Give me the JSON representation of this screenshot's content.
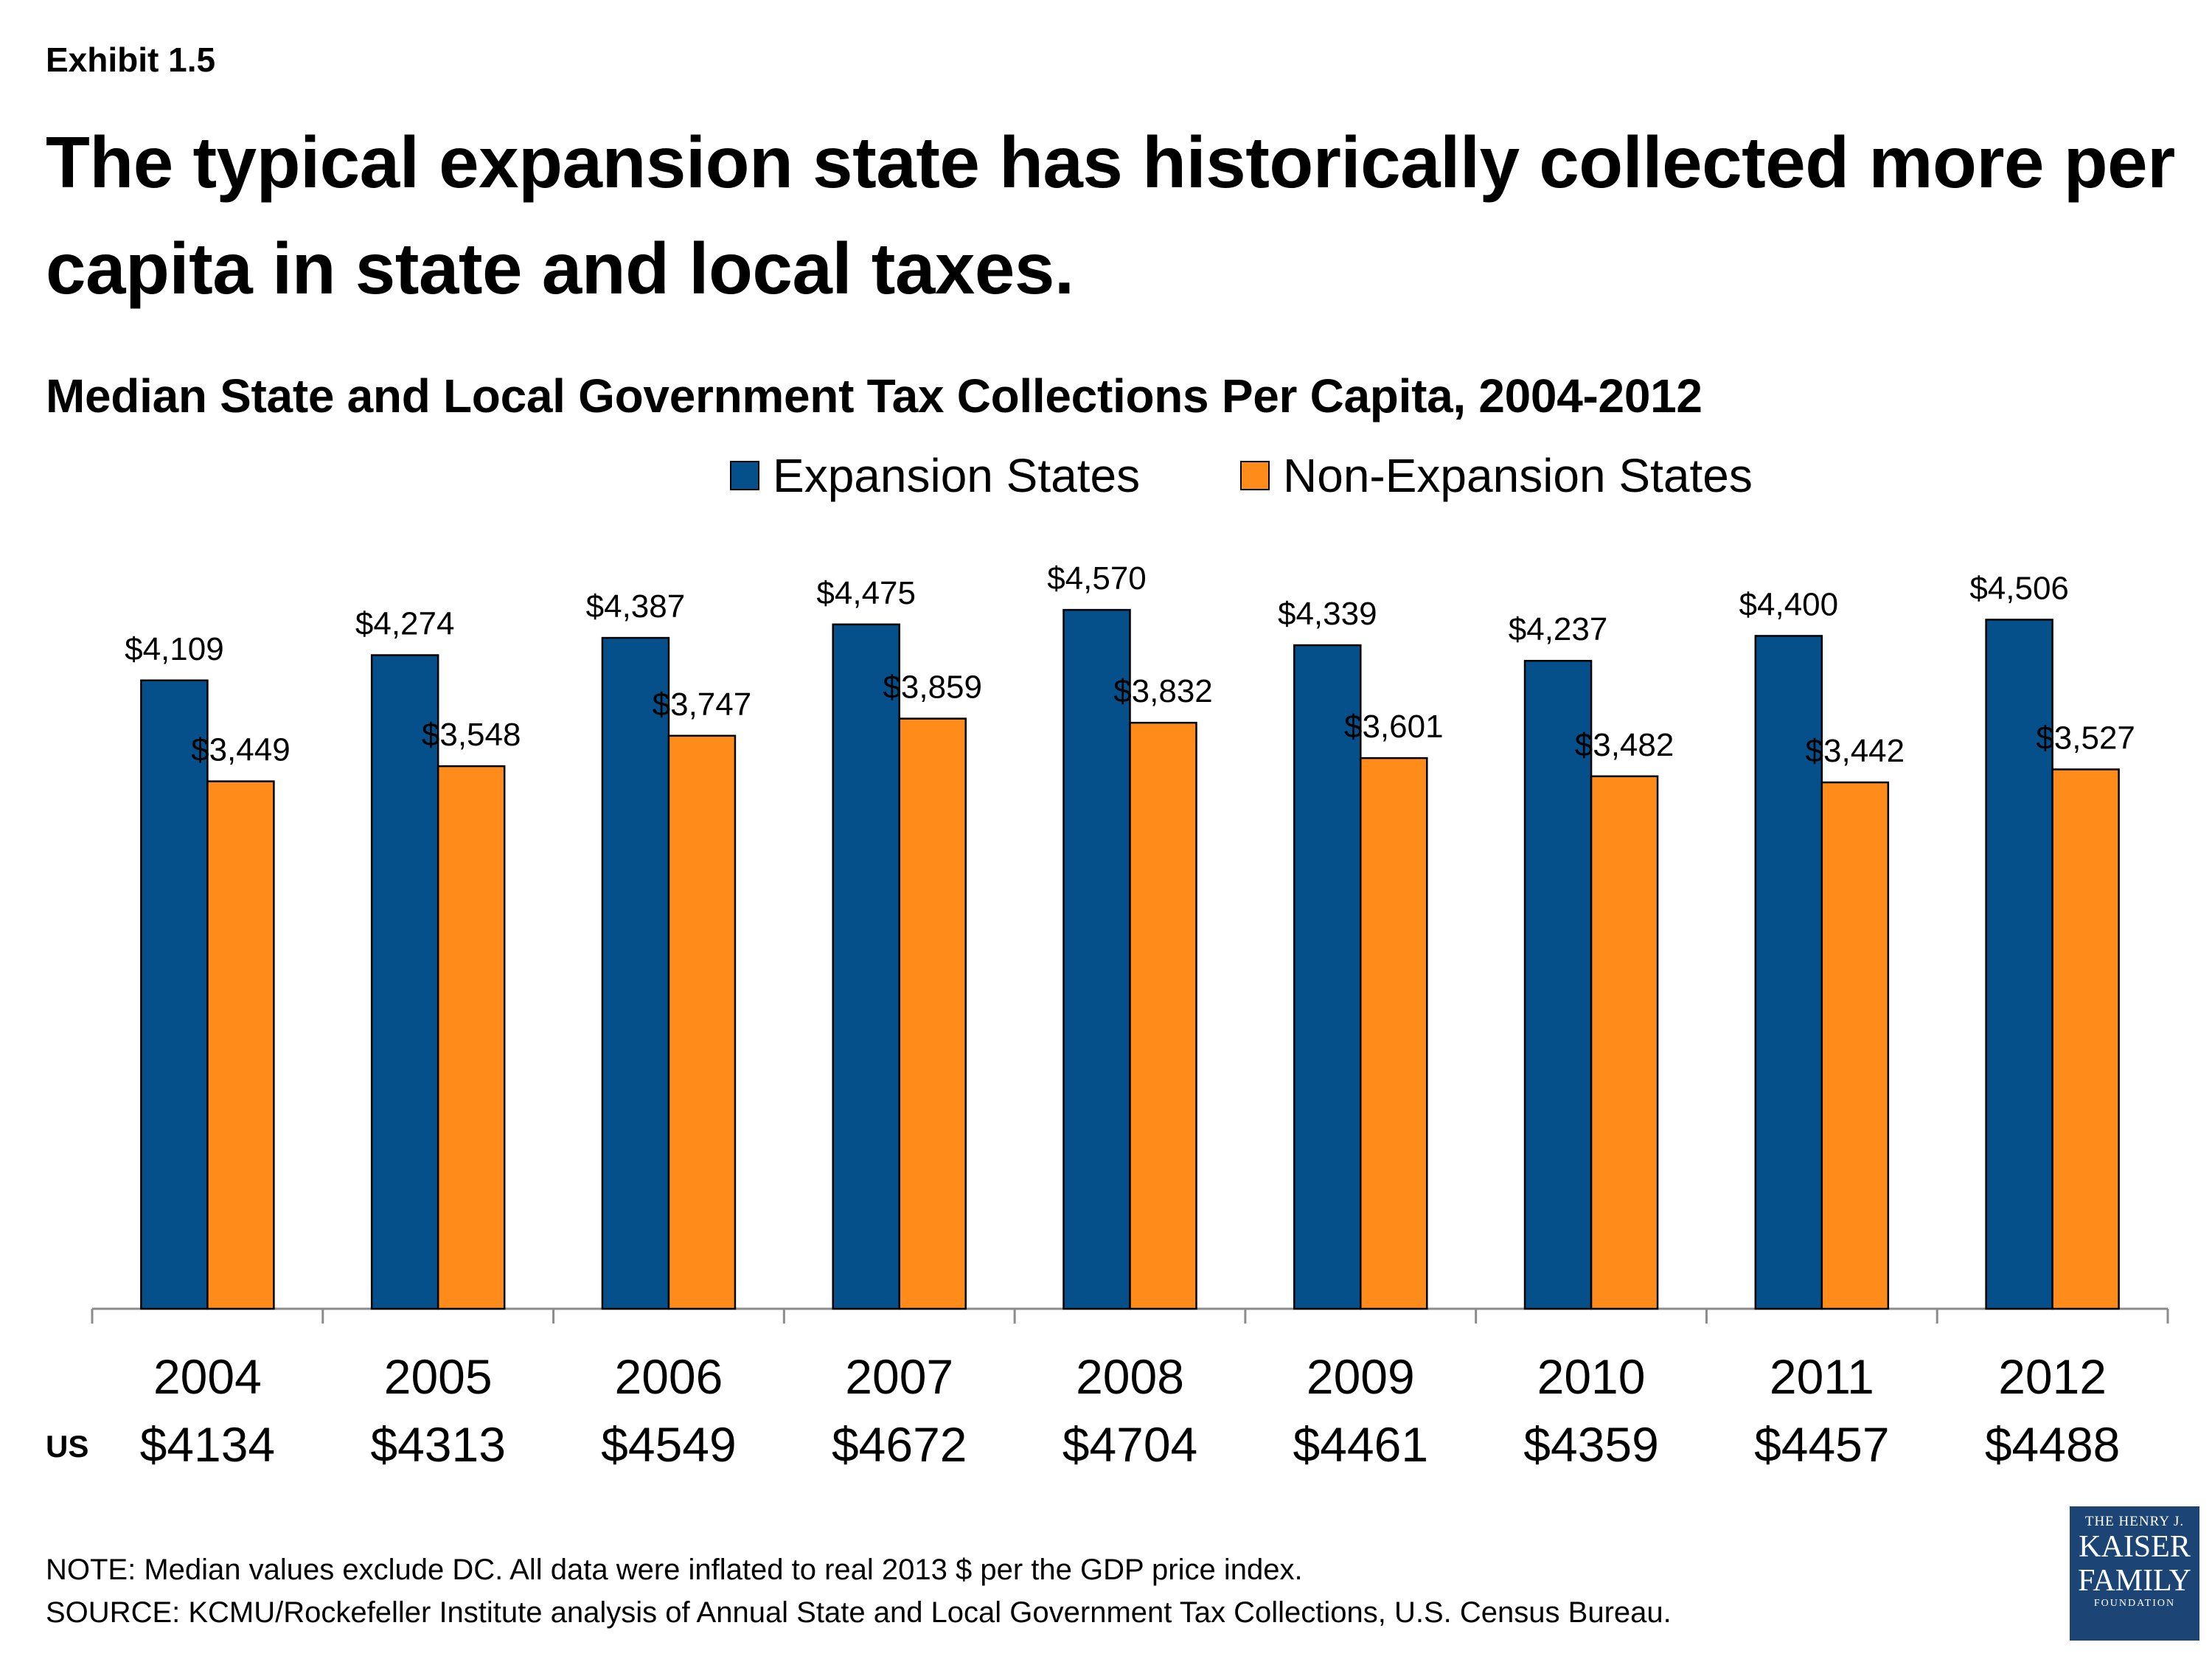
{
  "exhibit_label": "Exhibit 1.5",
  "headline": "The typical expansion state has historically collected more per capita in state and local taxes.",
  "us_row_label": "US",
  "note_line": "NOTE: Median values exclude DC. All data were inflated to real 2013 $ per the GDP price index.",
  "source_line": "SOURCE: KCMU/Rockefeller Institute analysis of Annual State and Local Government Tax Collections, U.S. Census Bureau.",
  "logo": {
    "line1": "THE HENRY J.",
    "line2": "KAISER",
    "line3": "FAMILY",
    "line4": "FOUNDATION"
  },
  "colors": {
    "expansion": "#05508A",
    "non_expansion": "#FF8C1A",
    "logo_bg": "#1c4474"
  },
  "chart_data": {
    "type": "bar",
    "title": "Median State and Local Government Tax Collections Per Capita, 2004-2012",
    "categories": [
      "2004",
      "2005",
      "2006",
      "2007",
      "2008",
      "2009",
      "2010",
      "2011",
      "2012"
    ],
    "us_values": [
      "$4134",
      "$4313",
      "$4549",
      "$4672",
      "$4704",
      "$4461",
      "$4359",
      "$4457",
      "$4488"
    ],
    "series": [
      {
        "name": "Expansion States",
        "color": "#05508A",
        "values": [
          4109,
          4274,
          4387,
          4475,
          4570,
          4339,
          4237,
          4400,
          4506
        ],
        "labels": [
          "$4,109",
          "$4,274",
          "$4,387",
          "$4,475",
          "$4,570",
          "$4,339",
          "$4,237",
          "$4,400",
          "$4,506"
        ]
      },
      {
        "name": "Non-Expansion States",
        "color": "#FF8C1A",
        "values": [
          3449,
          3548,
          3747,
          3859,
          3832,
          3601,
          3482,
          3442,
          3527
        ],
        "labels": [
          "$3,449",
          "$3,548",
          "$3,747",
          "$3,859",
          "$3,832",
          "$3,601",
          "$3,482",
          "$3,442",
          "$3,527"
        ]
      }
    ],
    "ylim": [
      0,
      4725
    ],
    "y_axis_visible": false,
    "grid": false,
    "legend": "top-center"
  }
}
